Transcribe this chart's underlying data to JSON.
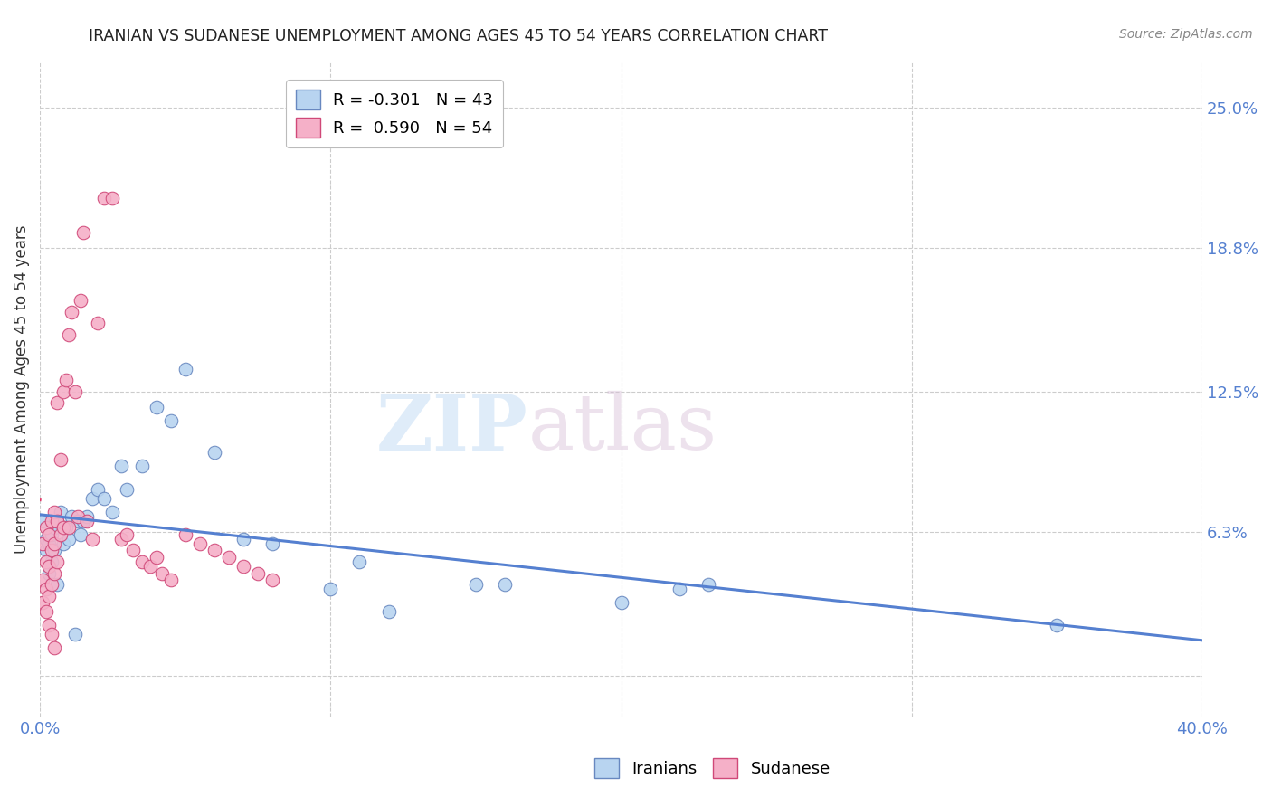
{
  "title": "IRANIAN VS SUDANESE UNEMPLOYMENT AMONG AGES 45 TO 54 YEARS CORRELATION CHART",
  "source": "Source: ZipAtlas.com",
  "ylabel": "Unemployment Among Ages 45 to 54 years",
  "xlim": [
    0.0,
    0.4
  ],
  "ylim": [
    -0.018,
    0.27
  ],
  "ytick_right_vals": [
    0.0,
    0.063,
    0.125,
    0.188,
    0.25
  ],
  "ytick_right_labels": [
    "",
    "6.3%",
    "12.5%",
    "18.8%",
    "25.0%"
  ],
  "watermark_zip": "ZIP",
  "watermark_atlas": "atlas",
  "legend_label1": "R = -0.301   N = 43",
  "legend_label2": "R =  0.590   N = 54",
  "iranians_color": "#b8d4f0",
  "sudanese_color": "#f5b0c8",
  "iranians_edge": "#6888c0",
  "sudanese_edge": "#d04878",
  "trend_iranian_color": "#5580d0",
  "trend_sudanese_color": "#e03868",
  "background_color": "#ffffff",
  "grid_color": "#cccccc",
  "title_color": "#222222",
  "title_fontsize": 12.5,
  "axis_label_color": "#333333",
  "tick_label_color": "#5580d0",
  "iranians_x": [
    0.001,
    0.002,
    0.002,
    0.003,
    0.003,
    0.004,
    0.004,
    0.005,
    0.005,
    0.006,
    0.006,
    0.007,
    0.008,
    0.009,
    0.01,
    0.011,
    0.012,
    0.013,
    0.014,
    0.015,
    0.016,
    0.018,
    0.02,
    0.022,
    0.025,
    0.028,
    0.03,
    0.035,
    0.04,
    0.045,
    0.05,
    0.06,
    0.07,
    0.08,
    0.1,
    0.11,
    0.12,
    0.15,
    0.16,
    0.2,
    0.22,
    0.23,
    0.35
  ],
  "iranians_y": [
    0.068,
    0.055,
    0.06,
    0.045,
    0.058,
    0.062,
    0.05,
    0.065,
    0.055,
    0.068,
    0.04,
    0.072,
    0.058,
    0.065,
    0.06,
    0.07,
    0.018,
    0.068,
    0.062,
    0.068,
    0.07,
    0.078,
    0.082,
    0.078,
    0.072,
    0.092,
    0.082,
    0.092,
    0.118,
    0.112,
    0.135,
    0.098,
    0.06,
    0.058,
    0.038,
    0.05,
    0.028,
    0.04,
    0.04,
    0.032,
    0.038,
    0.04,
    0.022
  ],
  "sudanese_x": [
    0.001,
    0.001,
    0.001,
    0.002,
    0.002,
    0.002,
    0.002,
    0.003,
    0.003,
    0.003,
    0.003,
    0.004,
    0.004,
    0.004,
    0.004,
    0.005,
    0.005,
    0.005,
    0.005,
    0.006,
    0.006,
    0.006,
    0.007,
    0.007,
    0.008,
    0.008,
    0.009,
    0.01,
    0.01,
    0.011,
    0.012,
    0.013,
    0.014,
    0.015,
    0.016,
    0.018,
    0.02,
    0.022,
    0.025,
    0.028,
    0.03,
    0.032,
    0.035,
    0.038,
    0.04,
    0.042,
    0.045,
    0.05,
    0.055,
    0.06,
    0.065,
    0.07,
    0.075,
    0.08
  ],
  "sudanese_y": [
    0.058,
    0.042,
    0.032,
    0.065,
    0.05,
    0.038,
    0.028,
    0.062,
    0.048,
    0.035,
    0.022,
    0.068,
    0.055,
    0.04,
    0.018,
    0.072,
    0.058,
    0.045,
    0.012,
    0.12,
    0.068,
    0.05,
    0.095,
    0.062,
    0.125,
    0.065,
    0.13,
    0.15,
    0.065,
    0.16,
    0.125,
    0.07,
    0.165,
    0.195,
    0.068,
    0.06,
    0.155,
    0.21,
    0.21,
    0.06,
    0.062,
    0.055,
    0.05,
    0.048,
    0.052,
    0.045,
    0.042,
    0.062,
    0.058,
    0.055,
    0.052,
    0.048,
    0.045,
    0.042
  ],
  "sud_trend_x_start": 0.0,
  "sud_trend_x_end": 0.08,
  "iran_trend_x_start": 0.0,
  "iran_trend_x_end": 0.4
}
